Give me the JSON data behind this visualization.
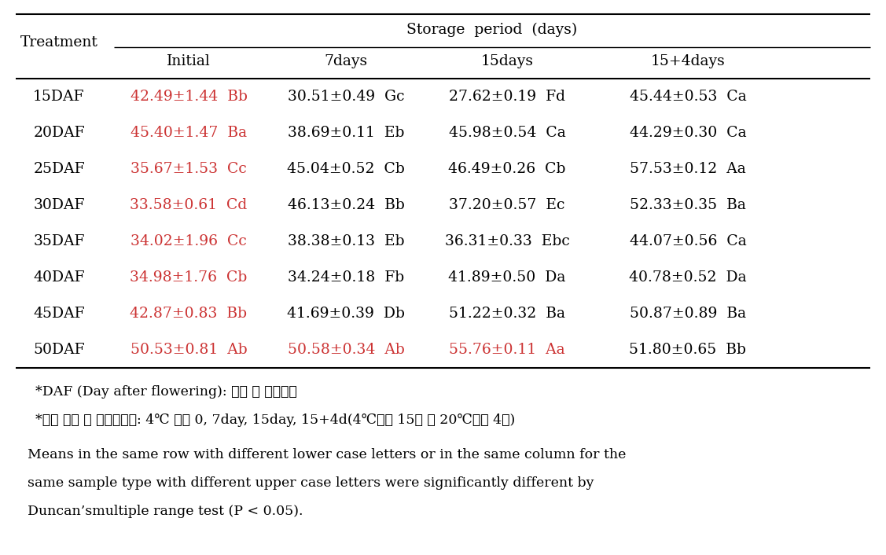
{
  "title_col2": "Storage  period  (days)",
  "title_col1": "Treatment",
  "sub_headers": [
    "Initial",
    "7days",
    "15days",
    "15+4days"
  ],
  "rows": [
    {
      "label": "15DAF",
      "values": [
        "42.49±1.44  Bb",
        "30.51±0.49  Gc",
        "27.62±0.19  Fd",
        "45.44±0.53  Ca"
      ],
      "red": [
        true,
        false,
        false,
        false
      ]
    },
    {
      "label": "20DAF",
      "values": [
        "45.40±1.47  Ba",
        "38.69±0.11  Eb",
        "45.98±0.54  Ca",
        "44.29±0.30  Ca"
      ],
      "red": [
        true,
        false,
        false,
        false
      ]
    },
    {
      "label": "25DAF",
      "values": [
        "35.67±1.53  Cc",
        "45.04±0.52  Cb",
        "46.49±0.26  Cb",
        "57.53±0.12  Aa"
      ],
      "red": [
        true,
        false,
        false,
        false
      ]
    },
    {
      "label": "30DAF",
      "values": [
        "33.58±0.61  Cd",
        "46.13±0.24  Bb",
        "37.20±0.57  Ec",
        "52.33±0.35  Ba"
      ],
      "red": [
        true,
        false,
        false,
        false
      ]
    },
    {
      "label": "35DAF",
      "values": [
        "34.02±1.96  Cc",
        "38.38±0.13  Eb",
        "36.31±0.33  Ebc",
        "44.07±0.56  Ca"
      ],
      "red": [
        true,
        false,
        false,
        false
      ]
    },
    {
      "label": "40DAF",
      "values": [
        "34.98±1.76  Cb",
        "34.24±0.18  Fb",
        "41.89±0.50  Da",
        "40.78±0.52  Da"
      ],
      "red": [
        true,
        false,
        false,
        false
      ]
    },
    {
      "label": "45DAF",
      "values": [
        "42.87±0.83  Bb",
        "41.69±0.39  Db",
        "51.22±0.32  Ba",
        "50.87±0.89  Ba"
      ],
      "red": [
        true,
        false,
        false,
        false
      ]
    },
    {
      "label": "50DAF",
      "values": [
        "50.53±0.81  Ab",
        "50.58±0.34  Ab",
        "55.76±0.11  Aa",
        "51.80±0.65  Bb"
      ],
      "red": [
        true,
        true,
        true,
        false
      ]
    }
  ],
  "footnote1": "*DAF (Day after flowering): 개화 후 수확일자",
  "footnote2": "*저장 기간 후 품질평가일: 4℃ 저장 0, 7day, 15day, 15+4d(4℃저장 15일 후 20℃저장 4일)",
  "footnote3": "Means in the same row with different lower case letters or in the same column for the",
  "footnote4": "same sample type with different upper case letters were significantly different by",
  "footnote5": "Duncan’smultiple range test (P < 0.05).",
  "bg_color": "#ffffff",
  "text_color": "#000000",
  "red_color": "#cc3333",
  "font_size": 13.5,
  "small_font_size": 12.5
}
